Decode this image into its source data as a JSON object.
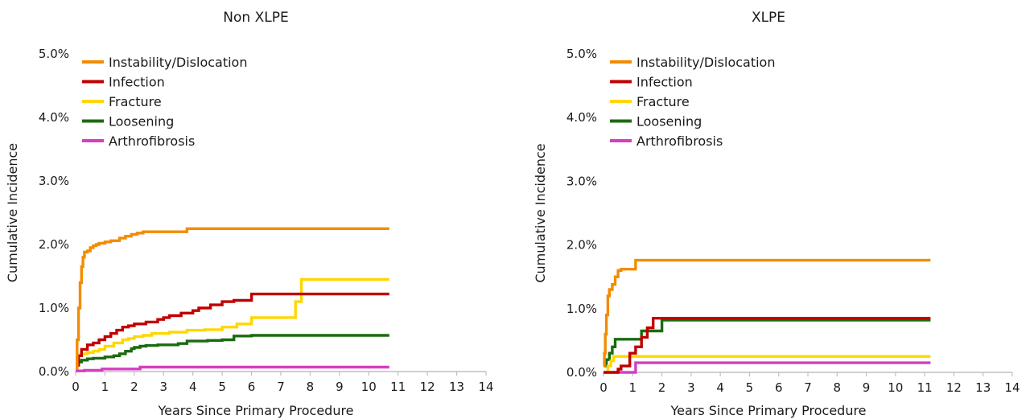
{
  "chart_data": [
    {
      "type": "line",
      "step": true,
      "title": "Non XLPE",
      "xlabel": "Years Since Primary Procedure",
      "ylabel": "Cumulative Incidence",
      "xlim": [
        0,
        14
      ],
      "ylim": [
        0,
        5
      ],
      "xticks": [
        "0",
        "1",
        "2",
        "3",
        "4",
        "5",
        "6",
        "7",
        "8",
        "9",
        "10",
        "11",
        "12",
        "13",
        "14"
      ],
      "yticks": [
        "0.0%",
        "1.0%",
        "2.0%",
        "3.0%",
        "4.0%",
        "5.0%"
      ],
      "grid": false,
      "legend_position": "top-left",
      "series": [
        {
          "name": "Instability/Dislocation",
          "color": "#f28c00",
          "x": [
            0,
            0.05,
            0.1,
            0.15,
            0.2,
            0.25,
            0.3,
            0.4,
            0.5,
            0.6,
            0.7,
            0.8,
            1.0,
            1.2,
            1.5,
            1.7,
            1.9,
            2.1,
            2.3,
            2.6,
            3.8,
            10.7
          ],
          "y": [
            0.05,
            0.5,
            1.0,
            1.4,
            1.65,
            1.8,
            1.88,
            1.9,
            1.95,
            1.98,
            2.0,
            2.02,
            2.04,
            2.06,
            2.1,
            2.13,
            2.16,
            2.18,
            2.2,
            2.2,
            2.25,
            2.25
          ]
        },
        {
          "name": "Infection",
          "color": "#c00000",
          "x": [
            0,
            0.1,
            0.2,
            0.4,
            0.6,
            0.8,
            1.0,
            1.2,
            1.4,
            1.6,
            1.8,
            2.0,
            2.4,
            2.8,
            3.0,
            3.2,
            3.6,
            4.0,
            4.2,
            4.6,
            5.0,
            5.4,
            6.0,
            6.2,
            10.7
          ],
          "y": [
            0.1,
            0.25,
            0.35,
            0.42,
            0.45,
            0.5,
            0.55,
            0.6,
            0.65,
            0.7,
            0.72,
            0.75,
            0.78,
            0.82,
            0.85,
            0.88,
            0.92,
            0.96,
            1.0,
            1.05,
            1.1,
            1.12,
            1.22,
            1.22,
            1.22
          ]
        },
        {
          "name": "Fracture",
          "color": "#ffd700",
          "x": [
            0,
            0.1,
            0.2,
            0.4,
            0.6,
            0.8,
            1.0,
            1.3,
            1.6,
            1.8,
            2.0,
            2.3,
            2.6,
            3.2,
            3.8,
            4.4,
            5.0,
            5.5,
            6.0,
            7.0,
            7.5,
            7.7,
            10.7
          ],
          "y": [
            0.2,
            0.25,
            0.28,
            0.3,
            0.32,
            0.35,
            0.4,
            0.45,
            0.5,
            0.52,
            0.55,
            0.57,
            0.6,
            0.62,
            0.65,
            0.66,
            0.7,
            0.75,
            0.85,
            0.85,
            1.1,
            1.45,
            1.45
          ]
        },
        {
          "name": "Loosening",
          "color": "#1a6b0f",
          "x": [
            0,
            0.1,
            0.2,
            0.4,
            0.6,
            1.0,
            1.3,
            1.5,
            1.7,
            1.9,
            2.0,
            2.2,
            2.4,
            2.8,
            3.5,
            3.8,
            4.5,
            5.0,
            5.4,
            6.0,
            10.7
          ],
          "y": [
            0.1,
            0.15,
            0.18,
            0.2,
            0.21,
            0.23,
            0.25,
            0.28,
            0.32,
            0.36,
            0.38,
            0.4,
            0.41,
            0.42,
            0.44,
            0.48,
            0.49,
            0.5,
            0.56,
            0.57,
            0.57
          ]
        },
        {
          "name": "Arthrofibrosis",
          "color": "#d63ebf",
          "x": [
            0,
            0.3,
            0.9,
            2.2,
            10.7
          ],
          "y": [
            0.01,
            0.02,
            0.04,
            0.07,
            0.07
          ]
        }
      ]
    },
    {
      "type": "line",
      "step": true,
      "title": "XLPE",
      "xlabel": "Years Since Primary Procedure",
      "ylabel": "Cumulative Incidence",
      "xlim": [
        0,
        14
      ],
      "ylim": [
        0,
        5
      ],
      "xticks": [
        "0",
        "1",
        "2",
        "3",
        "4",
        "5",
        "6",
        "7",
        "8",
        "9",
        "10",
        "11",
        "12",
        "13",
        "14"
      ],
      "yticks": [
        "0.0%",
        "1.0%",
        "2.0%",
        "3.0%",
        "4.0%",
        "5.0%"
      ],
      "grid": false,
      "legend_position": "top-left",
      "series": [
        {
          "name": "Instability/Dislocation",
          "color": "#f28c00",
          "x": [
            0,
            0.03,
            0.06,
            0.1,
            0.15,
            0.2,
            0.3,
            0.4,
            0.5,
            0.6,
            1.1,
            11.2
          ],
          "y": [
            0.1,
            0.3,
            0.6,
            0.9,
            1.2,
            1.3,
            1.38,
            1.5,
            1.6,
            1.62,
            1.76,
            1.76
          ]
        },
        {
          "name": "Infection",
          "color": "#c00000",
          "x": [
            0,
            0.5,
            0.6,
            0.9,
            1.1,
            1.3,
            1.5,
            1.7,
            11.2
          ],
          "y": [
            0,
            0.05,
            0.1,
            0.3,
            0.4,
            0.55,
            0.7,
            0.85,
            0.85
          ]
        },
        {
          "name": "Fracture",
          "color": "#ffd700",
          "x": [
            0,
            0.15,
            0.25,
            0.35,
            11.2
          ],
          "y": [
            0,
            0.1,
            0.18,
            0.25,
            0.25
          ]
        },
        {
          "name": "Loosening",
          "color": "#1a6b0f",
          "x": [
            0,
            0.1,
            0.2,
            0.3,
            0.4,
            0.6,
            1.3,
            1.6,
            1.8,
            2.0,
            11.2
          ],
          "y": [
            0.1,
            0.2,
            0.3,
            0.4,
            0.52,
            0.52,
            0.65,
            0.65,
            0.65,
            0.82,
            0.82
          ]
        },
        {
          "name": "Arthrofibrosis",
          "color": "#d63ebf",
          "x": [
            0,
            1.0,
            1.1,
            11.2
          ],
          "y": [
            0,
            0,
            0.15,
            0.15
          ]
        }
      ]
    }
  ]
}
